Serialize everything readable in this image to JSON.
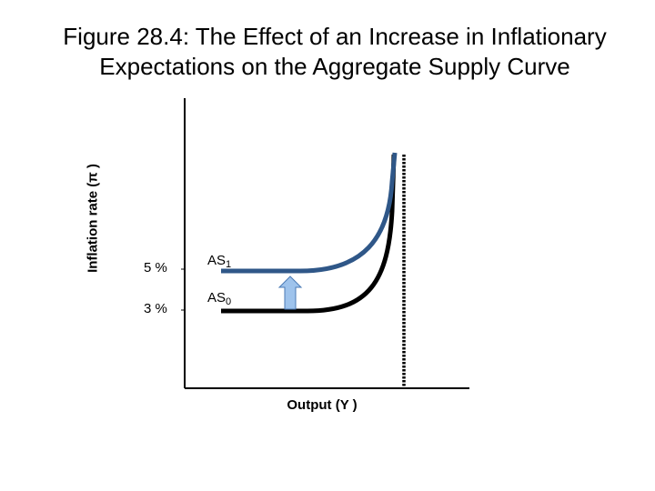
{
  "title": {
    "line1": "Figure 28.4: The Effect of an Increase in Inflationary",
    "line2": "Expectations on the Aggregate Supply Curve"
  },
  "axes": {
    "y_label": "Inflation rate (π )",
    "x_label": "Output (Y )"
  },
  "ticks": {
    "five": "5 %",
    "three": "3 %"
  },
  "curves": {
    "as1": {
      "base": "AS",
      "sub": "1",
      "color": "#2f5788"
    },
    "as0": {
      "base": "AS",
      "sub": "0",
      "color": "#000000"
    }
  },
  "colors": {
    "arrow_fill": "#9ec3ec",
    "arrow_stroke": "#4a7ab5",
    "axis": "#000000"
  }
}
